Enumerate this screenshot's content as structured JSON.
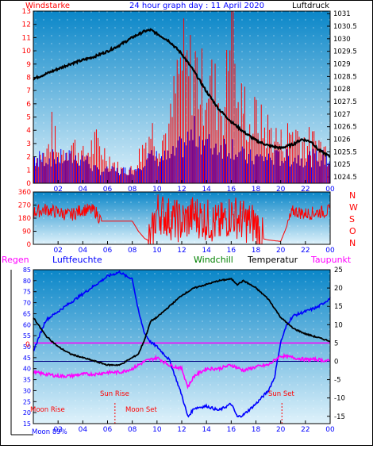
{
  "colors": {
    "frame": "#000000",
    "bg_top": "#0a86c8",
    "bg_bottom": "#dff2fb",
    "wind": "#ff0000",
    "gust": "#0000ff",
    "pressure": "#000000",
    "direction": "#ff0000",
    "humidity": "#0000ff",
    "temperature": "#000000",
    "dewpoint": "#ff00ff",
    "rain": "#ff00ff",
    "windchill": "#008000",
    "zero_line": "#000080",
    "red_text": "#ff0000",
    "blue_text": "#0000ff"
  },
  "header": {
    "wind_label": "Windstarke",
    "title": "24 hour graph day : 11 April 2020",
    "pressure_label": "Luftdruck"
  },
  "legend": {
    "rain": "Regen",
    "humidity": "Luftfeuchte",
    "windchill": "Windchill",
    "temperature": "Temperatur",
    "dewpoint": "Taupunkt"
  },
  "markers": {
    "moon_rise": "Moon Rise",
    "sun_rise": "Sun Rise",
    "moon_set": "Moon Set",
    "sun_set": "Sun Set",
    "moon_phase": "Moon 89%",
    "rain_zero": "0"
  },
  "compass": [
    "N",
    "W",
    "S",
    "O",
    "N"
  ],
  "chart_data": [
    {
      "type": "bar",
      "name": "Windstarke / Luftdruck",
      "x_ticks": [
        "02",
        "04",
        "06",
        "08",
        "10",
        "12",
        "14",
        "16",
        "18",
        "20",
        "22",
        "00"
      ],
      "x_hours": [
        0,
        24
      ],
      "y_left_ticks": [
        "13",
        "12",
        "11",
        "10",
        "9",
        "8",
        "7",
        "6",
        "5",
        "4",
        "3",
        "2",
        "1",
        "0"
      ],
      "y_left_range": [
        0,
        13
      ],
      "y_right_ticks": [
        "1031",
        "1030.5",
        "1030",
        "1029.5",
        "1029",
        "1028.5",
        "1028",
        "1027.5",
        "1027",
        "1026.5",
        "1026",
        "1025.5",
        "1025",
        "1024.5"
      ],
      "y_right_range": [
        1024.25,
        1031.1
      ],
      "series": [
        {
          "name": "Windstarke",
          "points": [
            [
              0,
              2
            ],
            [
              1,
              2
            ],
            [
              1.5,
              4
            ],
            [
              2,
              2
            ],
            [
              3,
              3
            ],
            [
              4,
              2
            ],
            [
              5,
              3
            ],
            [
              6,
              2
            ],
            [
              7,
              1
            ],
            [
              8,
              1
            ],
            [
              8.5,
              2
            ],
            [
              9,
              3
            ],
            [
              9.5,
              4
            ],
            [
              10,
              3
            ],
            [
              11,
              4
            ],
            [
              11.5,
              7
            ],
            [
              12,
              9
            ],
            [
              12.5,
              8
            ],
            [
              13,
              9
            ],
            [
              13.5,
              7
            ],
            [
              14,
              8
            ],
            [
              14.5,
              7
            ],
            [
              15,
              6
            ],
            [
              15.5,
              6
            ],
            [
              16,
              13
            ],
            [
              16.5,
              5
            ],
            [
              17,
              6
            ],
            [
              17.5,
              4
            ],
            [
              18,
              5
            ],
            [
              18.5,
              4
            ],
            [
              19,
              4
            ],
            [
              20,
              3
            ],
            [
              21,
              4
            ],
            [
              22,
              3
            ],
            [
              23,
              3
            ],
            [
              24,
              2
            ]
          ]
        },
        {
          "name": "Boen",
          "points": [
            [
              0,
              2
            ],
            [
              1,
              2
            ],
            [
              2,
              2
            ],
            [
              3,
              2
            ],
            [
              4,
              2
            ],
            [
              5,
              1
            ],
            [
              6,
              1
            ],
            [
              7,
              1
            ],
            [
              8,
              1
            ],
            [
              9,
              2
            ],
            [
              10,
              2
            ],
            [
              11,
              2
            ],
            [
              12,
              3
            ],
            [
              13,
              4
            ],
            [
              14,
              3
            ],
            [
              15,
              3
            ],
            [
              16,
              3
            ],
            [
              17,
              2
            ],
            [
              18,
              2
            ],
            [
              19,
              2
            ],
            [
              20,
              2
            ],
            [
              21,
              2
            ],
            [
              22,
              2
            ],
            [
              23,
              2
            ],
            [
              24,
              2
            ]
          ]
        },
        {
          "name": "Luftdruck",
          "points": [
            [
              0,
              1028.4
            ],
            [
              1,
              1028.6
            ],
            [
              2,
              1028.8
            ],
            [
              3,
              1029.0
            ],
            [
              4,
              1029.15
            ],
            [
              5,
              1029.3
            ],
            [
              6,
              1029.5
            ],
            [
              7,
              1029.75
            ],
            [
              8,
              1030.05
            ],
            [
              9,
              1030.3
            ],
            [
              9.5,
              1030.35
            ],
            [
              10,
              1030.2
            ],
            [
              11,
              1029.9
            ],
            [
              12,
              1029.4
            ],
            [
              13,
              1028.7
            ],
            [
              14,
              1027.9
            ],
            [
              15,
              1027.2
            ],
            [
              16,
              1026.7
            ],
            [
              17,
              1026.3
            ],
            [
              18,
              1025.95
            ],
            [
              19,
              1025.75
            ],
            [
              20,
              1025.65
            ],
            [
              21,
              1025.8
            ],
            [
              21.7,
              1026.0
            ],
            [
              22.5,
              1025.9
            ],
            [
              23,
              1025.6
            ],
            [
              24,
              1025.3
            ]
          ]
        }
      ]
    },
    {
      "type": "line",
      "name": "Windrichtung",
      "y_ticks": [
        "360",
        "270",
        "180",
        "90",
        "0"
      ],
      "y_range": [
        0,
        360
      ],
      "points": [
        [
          0,
          220
        ],
        [
          1,
          240
        ],
        [
          2,
          220
        ],
        [
          3,
          200
        ],
        [
          4,
          240
        ],
        [
          5,
          230
        ],
        [
          5.5,
          160
        ],
        [
          6,
          160
        ],
        [
          7,
          160
        ],
        [
          8,
          160
        ],
        [
          8.5,
          90
        ],
        [
          9,
          40
        ],
        [
          9.5,
          20
        ],
        [
          10,
          230
        ],
        [
          11,
          180
        ],
        [
          12,
          150
        ],
        [
          13,
          200
        ],
        [
          14,
          170
        ],
        [
          15,
          130
        ],
        [
          16,
          210
        ],
        [
          17,
          160
        ],
        [
          18,
          140
        ],
        [
          18.5,
          40
        ],
        [
          19,
          30
        ],
        [
          20,
          20
        ],
        [
          21,
          230
        ],
        [
          22,
          210
        ],
        [
          23,
          220
        ],
        [
          24,
          230
        ]
      ]
    },
    {
      "type": "line",
      "name": "Temperatur / Luftfeuchte",
      "y_left_ticks": [
        "85",
        "80",
        "75",
        "70",
        "65",
        "60",
        "55",
        "50",
        "45",
        "40",
        "35",
        "30",
        "25",
        "20",
        "15"
      ],
      "y_left_range": [
        15,
        85
      ],
      "y_right_ticks": [
        "25",
        "20",
        "15",
        "10",
        "5",
        "0",
        "-5",
        "-10",
        "-15"
      ],
      "y_right_range": [
        -17,
        25
      ],
      "series": [
        {
          "name": "Luftfeuchte",
          "points": [
            [
              0,
              48
            ],
            [
              1,
              62
            ],
            [
              2,
              66
            ],
            [
              3,
              70
            ],
            [
              4,
              74
            ],
            [
              5,
              78
            ],
            [
              6,
              82
            ],
            [
              7,
              84
            ],
            [
              7.5,
              82
            ],
            [
              8,
              81
            ],
            [
              8.5,
              66
            ],
            [
              9,
              56
            ],
            [
              9.5,
              52
            ],
            [
              10,
              50
            ],
            [
              11,
              44
            ],
            [
              12,
              28
            ],
            [
              12.5,
              18
            ],
            [
              13,
              22
            ],
            [
              14,
              23
            ],
            [
              15,
              21
            ],
            [
              16,
              24
            ],
            [
              16.5,
              18
            ],
            [
              17,
              19
            ],
            [
              18,
              24
            ],
            [
              19,
              30
            ],
            [
              19.5,
              36
            ],
            [
              20,
              52
            ],
            [
              20.5,
              60
            ],
            [
              21,
              64
            ],
            [
              22,
              66
            ],
            [
              23,
              68
            ],
            [
              24,
              72
            ]
          ]
        },
        {
          "name": "Temperatur",
          "points": [
            [
              0,
              12
            ],
            [
              1,
              7
            ],
            [
              2,
              4
            ],
            [
              3,
              2
            ],
            [
              4,
              1
            ],
            [
              5,
              0
            ],
            [
              6,
              -1
            ],
            [
              7,
              -1
            ],
            [
              8,
              1
            ],
            [
              8.5,
              2
            ],
            [
              9,
              6
            ],
            [
              9.5,
              11
            ],
            [
              10,
              12
            ],
            [
              11,
              15
            ],
            [
              12,
              18
            ],
            [
              13,
              20
            ],
            [
              14,
              21
            ],
            [
              15,
              22
            ],
            [
              16,
              22.5
            ],
            [
              16.5,
              21
            ],
            [
              17,
              22
            ],
            [
              18,
              20
            ],
            [
              19,
              17
            ],
            [
              20,
              12
            ],
            [
              21,
              9
            ],
            [
              22,
              7.5
            ],
            [
              23,
              6.5
            ],
            [
              24,
              5.5
            ]
          ]
        },
        {
          "name": "Taupunkt",
          "points": [
            [
              0,
              -3
            ],
            [
              1,
              -3.5
            ],
            [
              2,
              -4
            ],
            [
              3,
              -4
            ],
            [
              4,
              -3.5
            ],
            [
              5,
              -3.5
            ],
            [
              6,
              -3
            ],
            [
              7,
              -3
            ],
            [
              8,
              -2
            ],
            [
              9,
              0
            ],
            [
              10,
              1
            ],
            [
              11,
              -1
            ],
            [
              12,
              -2
            ],
            [
              12.5,
              -7
            ],
            [
              13,
              -4
            ],
            [
              14,
              -2
            ],
            [
              15,
              -2
            ],
            [
              16,
              -1
            ],
            [
              17,
              -2.5
            ],
            [
              18,
              -1.5
            ],
            [
              19,
              -1
            ],
            [
              20,
              1.5
            ],
            [
              21,
              1
            ],
            [
              22,
              0.5
            ],
            [
              23,
              0.5
            ],
            [
              24,
              0
            ]
          ]
        }
      ]
    }
  ]
}
